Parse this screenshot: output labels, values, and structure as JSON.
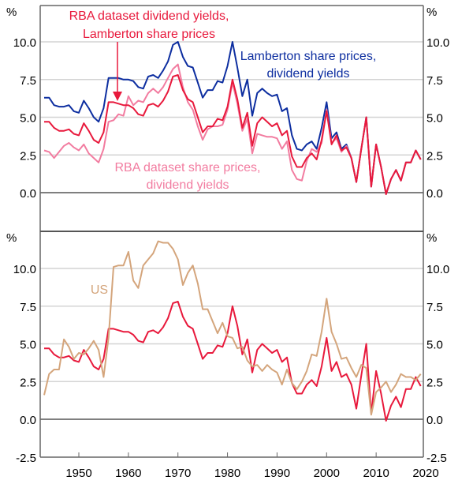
{
  "chart_data": [
    {
      "type": "line",
      "panel": "top",
      "title": "",
      "ylabel_left": "%",
      "ylabel_right": "%",
      "ylim": [
        -2.5,
        12.5
      ],
      "yticks": [
        "0.0",
        "2.5",
        "5.0",
        "7.5",
        "10.0"
      ],
      "ytick_values": [
        0,
        2.5,
        5,
        7.5,
        10
      ],
      "grid": true,
      "x_start": 1943,
      "series": [
        {
          "name": "RBA dataset dividend yields, Lamberton share prices",
          "color": "#e8193c",
          "start": 1943,
          "values": [
            4.7,
            4.7,
            4.3,
            4.1,
            4.1,
            4.2,
            3.9,
            3.8,
            4.6,
            4.1,
            3.5,
            3.3,
            4.0,
            6.0,
            6.0,
            5.9,
            5.8,
            5.8,
            5.6,
            5.2,
            5.1,
            5.8,
            5.9,
            5.7,
            6.1,
            6.7,
            7.7,
            7.8,
            6.8,
            6.2,
            6.0,
            5.0,
            4.0,
            4.4,
            4.4,
            4.9,
            4.8,
            5.7,
            7.5,
            6.2,
            4.3,
            5.3,
            3.1,
            4.6,
            5.0,
            4.7,
            4.4,
            4.6,
            3.8,
            4.1,
            2.4,
            1.7,
            1.7,
            2.3,
            2.6,
            2.2,
            3.5,
            5.4,
            3.2,
            3.8,
            2.8,
            3.0,
            2.3,
            0.7,
            2.9,
            5.0,
            0.4,
            3.2,
            1.7,
            -0.1,
            0.9,
            1.5,
            0.8,
            2.0,
            2.0,
            2.8,
            2.2
          ]
        },
        {
          "name": "Lamberton share prices, dividend yields",
          "color": "#0d2ea0",
          "start": 1943,
          "values": [
            6.3,
            6.3,
            5.8,
            5.7,
            5.7,
            5.8,
            5.4,
            5.3,
            6.1,
            5.6,
            5.0,
            4.7,
            5.6,
            7.6,
            7.6,
            7.6,
            7.5,
            7.5,
            7.4,
            7.0,
            6.9,
            7.7,
            7.8,
            7.6,
            8.1,
            8.7,
            9.8,
            10.0,
            9.0,
            8.4,
            8.3,
            7.3,
            6.3,
            6.8,
            6.8,
            7.4,
            7.3,
            8.4,
            10.0,
            8.3,
            6.4,
            7.5,
            5.1,
            6.6,
            6.9,
            6.6,
            6.4,
            6.5,
            5.4,
            5.6,
            3.8,
            2.9,
            2.8,
            3.2,
            3.4,
            2.9,
            4.3,
            6.0,
            3.6,
            4.0,
            2.9,
            3.2,
            2.3,
            0.7,
            2.9,
            5.0,
            0.4,
            3.2,
            1.7,
            -0.1,
            0.9,
            1.5,
            0.8,
            2.0,
            2.0,
            2.8,
            2.2
          ]
        },
        {
          "name": "RBA dataset share prices, dividend yields",
          "color": "#f27ca0",
          "start": 1943,
          "values": [
            2.8,
            2.7,
            2.3,
            2.7,
            3.1,
            3.3,
            3.0,
            2.8,
            3.2,
            2.6,
            2.3,
            2.0,
            2.9,
            4.7,
            4.8,
            5.2,
            5.1,
            6.4,
            5.8,
            6.1,
            6.0,
            6.6,
            6.9,
            6.6,
            7.0,
            7.6,
            8.2,
            8.5,
            7.0,
            6.0,
            5.5,
            4.4,
            3.5,
            4.2,
            4.4,
            4.4,
            4.5,
            5.5,
            7.3,
            5.9,
            4.1,
            4.9,
            2.6,
            3.9,
            3.8,
            3.7,
            3.7,
            3.6,
            2.9,
            3.4,
            1.5,
            0.9,
            0.8,
            2.1,
            2.9,
            2.7,
            3.3,
            5.5,
            3.3,
            3.6,
            2.7,
            3.1,
            2.3,
            0.7,
            2.9,
            5.0,
            0.4,
            3.2,
            1.7,
            -0.1,
            0.9,
            1.5,
            0.8,
            2.0,
            2.0,
            2.8,
            2.2
          ]
        }
      ],
      "annotations": [
        {
          "text_lines": [
            "RBA dataset dividend yields,",
            "Lamberton share prices"
          ],
          "color": "#e8193c",
          "arrow_to_year": 1958
        },
        {
          "text_lines": [
            "Lamberton share prices,",
            "dividend yields"
          ],
          "color": "#0d2ea0"
        },
        {
          "text_lines": [
            "RBA dataset share prices,",
            "dividend yields"
          ],
          "color": "#f27ca0"
        }
      ]
    },
    {
      "type": "line",
      "panel": "bottom",
      "title": "",
      "ylabel_left": "%",
      "ylabel_right": "%",
      "ylim": [
        -2.5,
        12.5
      ],
      "yticks": [
        "-2.5",
        "0.0",
        "2.5",
        "5.0",
        "7.5",
        "10.0"
      ],
      "ytick_values": [
        -2.5,
        0,
        2.5,
        5,
        7.5,
        10
      ],
      "grid": true,
      "x_start": 1943,
      "xticks": [
        "1950",
        "1960",
        "1970",
        "1980",
        "1990",
        "2000",
        "2010",
        "2020"
      ],
      "xtick_values": [
        1950,
        1960,
        1970,
        1980,
        1990,
        2000,
        2010,
        2020
      ],
      "xlim": [
        1942.3,
        2020
      ],
      "series": [
        {
          "name": "RBA dataset dividend yields, Lamberton share prices",
          "color": "#e8193c",
          "start": 1943,
          "values": [
            4.7,
            4.7,
            4.3,
            4.1,
            4.1,
            4.2,
            3.9,
            3.8,
            4.6,
            4.1,
            3.5,
            3.3,
            4.0,
            6.0,
            6.0,
            5.9,
            5.8,
            5.8,
            5.6,
            5.2,
            5.1,
            5.8,
            5.9,
            5.7,
            6.1,
            6.7,
            7.7,
            7.8,
            6.8,
            6.2,
            6.0,
            5.0,
            4.0,
            4.4,
            4.4,
            4.9,
            4.8,
            5.7,
            7.5,
            6.2,
            4.3,
            5.3,
            3.1,
            4.6,
            5.0,
            4.7,
            4.4,
            4.6,
            3.8,
            4.1,
            2.4,
            1.7,
            1.7,
            2.3,
            2.6,
            2.2,
            3.5,
            5.4,
            3.2,
            3.8,
            2.8,
            3.0,
            2.3,
            0.7,
            2.9,
            5.0,
            0.4,
            3.2,
            1.7,
            -0.1,
            0.9,
            1.5,
            0.8,
            2.0,
            2.0,
            2.8,
            2.2
          ]
        },
        {
          "name": "US",
          "color": "#d4a57c",
          "start": 1943,
          "values": [
            1.6,
            3.0,
            3.3,
            3.3,
            5.3,
            4.8,
            4.0,
            4.4,
            4.3,
            4.7,
            5.2,
            4.6,
            2.8,
            5.4,
            10.1,
            10.2,
            10.2,
            11.1,
            9.2,
            8.7,
            10.2,
            10.6,
            11.0,
            11.8,
            11.7,
            11.7,
            11.3,
            10.6,
            8.9,
            9.7,
            10.2,
            9.0,
            7.3,
            7.3,
            6.5,
            5.7,
            6.4,
            5.5,
            5.4,
            4.7,
            4.8,
            3.9,
            3.5,
            3.6,
            3.2,
            3.6,
            3.3,
            3.1,
            2.3,
            3.3,
            2.4,
            2.0,
            2.5,
            3.2,
            4.3,
            4.2,
            5.8,
            8.0,
            5.8,
            5.0,
            4.0,
            4.1,
            3.4,
            2.8,
            3.6,
            3.4,
            0.3,
            1.8,
            2.1,
            2.5,
            1.8,
            2.3,
            3.0,
            2.8,
            2.8,
            2.6,
            3.0
          ]
        }
      ],
      "annotations": [
        {
          "text_lines": [
            "US"
          ],
          "color": "#d4a57c"
        }
      ]
    }
  ],
  "labels": {
    "top_pct_left": "%",
    "top_pct_right": "%",
    "bottom_pct_left": "%",
    "bottom_pct_right": "%"
  }
}
